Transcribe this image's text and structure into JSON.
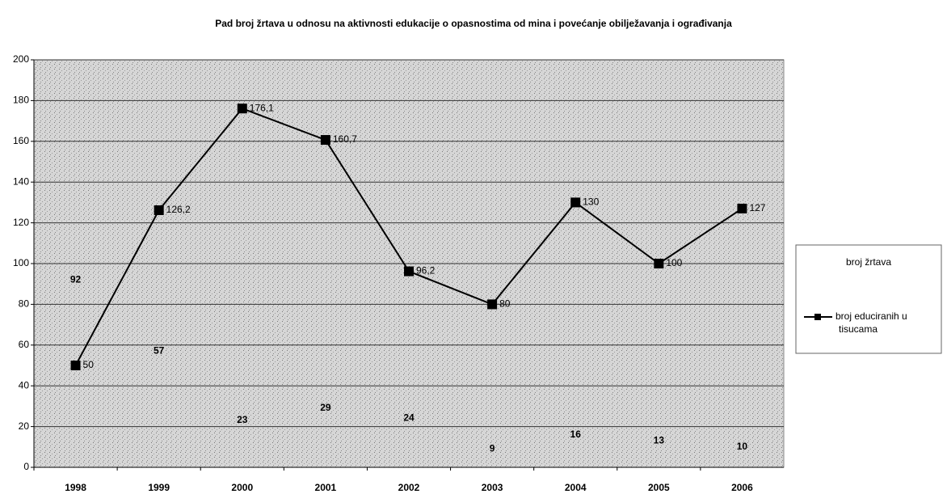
{
  "chart_data": {
    "type": "bar-line",
    "title": "Pad broj žrtava u odnosu na aktivnosti edukacije o opasnostima od mina i povećanje obilježavanja i ograđivanja",
    "categories": [
      "1998",
      "1999",
      "2000",
      "2001",
      "2002",
      "2003",
      "2004",
      "2005",
      "2006"
    ],
    "series": [
      {
        "name": "broj žrtava",
        "type": "bar",
        "values": [
          92,
          57,
          23,
          29,
          24,
          9,
          16,
          13,
          10
        ]
      },
      {
        "name": "broj educiranih u tisucama",
        "type": "line",
        "color": "#000000",
        "values": [
          50,
          126.2,
          176.1,
          160.7,
          96.2,
          80,
          130,
          100,
          127
        ],
        "value_labels": [
          "50",
          "126,2",
          "176,1",
          "160,7",
          "96,2",
          "80",
          "130",
          "100",
          "127"
        ]
      }
    ],
    "ylim": [
      0,
      200
    ],
    "yticks": [
      0,
      20,
      40,
      60,
      80,
      100,
      120,
      140,
      160,
      180,
      200
    ],
    "grid": true,
    "legend": "right"
  }
}
